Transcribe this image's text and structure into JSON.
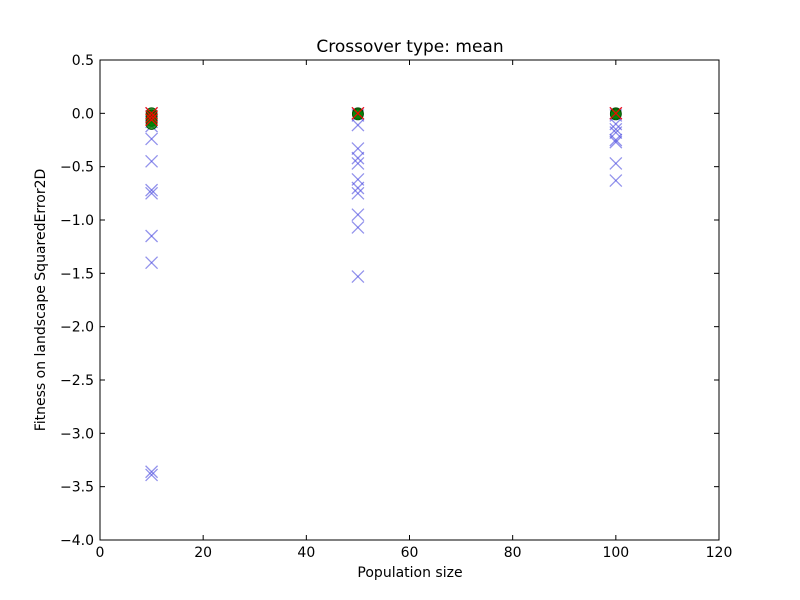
{
  "chart_data": {
    "type": "scatter",
    "title": "Crossover type: mean",
    "xlabel": "Population size",
    "ylabel": "Fitness on landscape SquaredError2D",
    "xlim": [
      0,
      120
    ],
    "ylim": [
      -4.0,
      0.5
    ],
    "xticks": [
      "0",
      "20",
      "40",
      "60",
      "80",
      "100",
      "120"
    ],
    "xtick_values": [
      0,
      20,
      40,
      60,
      80,
      100,
      120
    ],
    "yticks": [
      "0.5",
      "0.0",
      "−0.5",
      "−1.0",
      "−1.5",
      "−2.0",
      "−2.5",
      "−3.0",
      "−3.5",
      "−4.0"
    ],
    "ytick_values": [
      0.5,
      0.0,
      -0.5,
      -1.0,
      -1.5,
      -2.0,
      -2.5,
      -3.0,
      -3.5,
      -4.0
    ],
    "grid": false,
    "series": [
      {
        "marker": "x",
        "color": "#4a4ae0",
        "points": [
          [
            10,
            0.0
          ],
          [
            10,
            -0.03
          ],
          [
            10,
            -0.08
          ],
          [
            10,
            -0.12
          ],
          [
            10,
            -0.24
          ],
          [
            10,
            -0.45
          ],
          [
            10,
            -0.72
          ],
          [
            10,
            -0.75
          ],
          [
            10,
            -1.15
          ],
          [
            10,
            -1.4
          ],
          [
            10,
            -3.36
          ],
          [
            10,
            -3.39
          ],
          [
            50,
            0.0
          ],
          [
            50,
            -0.02
          ],
          [
            50,
            -0.11
          ],
          [
            50,
            -0.33
          ],
          [
            50,
            -0.42
          ],
          [
            50,
            -0.47
          ],
          [
            50,
            -0.62
          ],
          [
            50,
            -0.7
          ],
          [
            50,
            -0.75
          ],
          [
            50,
            -0.95
          ],
          [
            50,
            -1.07
          ],
          [
            50,
            -1.53
          ],
          [
            100,
            0.0
          ],
          [
            100,
            -0.02
          ],
          [
            100,
            -0.1
          ],
          [
            100,
            -0.15
          ],
          [
            100,
            -0.18
          ],
          [
            100,
            -0.25
          ],
          [
            100,
            -0.27
          ],
          [
            100,
            -0.47
          ],
          [
            100,
            -0.63
          ]
        ]
      },
      {
        "marker": "circle",
        "color": "#008000",
        "points": [
          [
            10,
            0.0
          ],
          [
            10,
            -0.02
          ],
          [
            10,
            -0.04
          ],
          [
            10,
            -0.07
          ],
          [
            10,
            -0.1
          ],
          [
            50,
            0.0
          ],
          [
            50,
            -0.01
          ],
          [
            100,
            0.0
          ],
          [
            100,
            -0.01
          ]
        ]
      },
      {
        "marker": "x",
        "color": "#ff0000",
        "points": [
          [
            10,
            0.0
          ],
          [
            10,
            -0.03
          ],
          [
            10,
            -0.06
          ],
          [
            50,
            0.0
          ],
          [
            100,
            0.0
          ]
        ]
      }
    ]
  }
}
